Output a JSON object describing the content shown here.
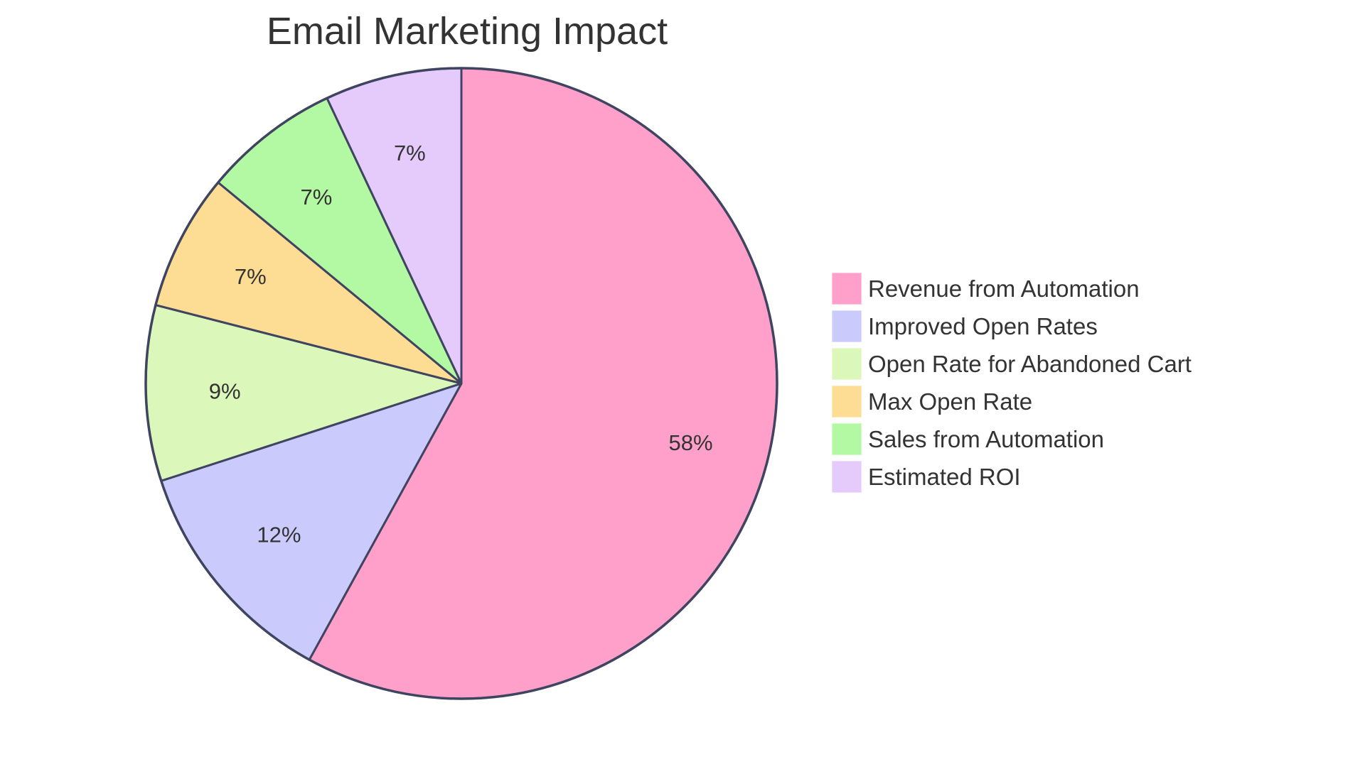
{
  "chart_data": {
    "type": "pie",
    "title": "Email Marketing Impact",
    "start_angle_deg": 0,
    "direction": "clockwise",
    "legend_position": "right",
    "slices": [
      {
        "label": "Revenue from Automation",
        "value": 58,
        "display": "58%",
        "color": "#FFA0CB"
      },
      {
        "label": "Improved Open Rates",
        "value": 12,
        "display": "12%",
        "color": "#CACBFC"
      },
      {
        "label": "Open Rate for Abandoned Cart",
        "value": 9,
        "display": "9%",
        "color": "#DBF8BA"
      },
      {
        "label": "Max Open Rate",
        "value": 7,
        "display": "7%",
        "color": "#FDDD94"
      },
      {
        "label": "Sales from Automation",
        "value": 7,
        "display": "7%",
        "color": "#B3F8A2"
      },
      {
        "label": "Estimated ROI",
        "value": 7,
        "display": "7%",
        "color": "#E5CAFC"
      }
    ]
  },
  "title": "Email Marketing Impact",
  "stroke_color": "#3F4460",
  "legend": {
    "items": [
      {
        "label": "Revenue from Automation",
        "color": "#FFA0CB"
      },
      {
        "label": "Improved Open Rates",
        "color": "#CACBFC"
      },
      {
        "label": "Open Rate for Abandoned Cart",
        "color": "#DBF8BA"
      },
      {
        "label": "Max Open Rate",
        "color": "#FDDD94"
      },
      {
        "label": "Sales from Automation",
        "color": "#B3F8A2"
      },
      {
        "label": "Estimated ROI",
        "color": "#E5CAFC"
      }
    ]
  }
}
